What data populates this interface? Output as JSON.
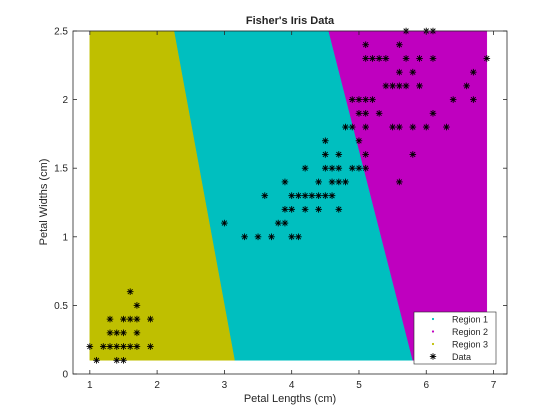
{
  "chart_data": {
    "type": "scatter",
    "title": "Fisher's Iris Data",
    "xlabel": "Petal Lengths (cm)",
    "ylabel": "Petal Widths (cm)",
    "xlim": [
      0.75,
      7.2
    ],
    "ylim": [
      0,
      2.5
    ],
    "xticks": [
      1,
      2,
      3,
      4,
      5,
      6,
      7
    ],
    "yticks": [
      0,
      0.5,
      1,
      1.5,
      2,
      2.5
    ],
    "xtick_labels": [
      "1",
      "2",
      "3",
      "4",
      "5",
      "6",
      "7"
    ],
    "ytick_labels": [
      "0",
      "0.5",
      "1",
      "1.5",
      "2",
      "2.5"
    ],
    "grid": false,
    "legend_position": "bottom-right",
    "regions": [
      {
        "name": "Region 1",
        "color": "#00bfbf",
        "polygon": [
          [
            2.25,
            2.5
          ],
          [
            4.55,
            2.5
          ],
          [
            5.8,
            0.1
          ],
          [
            3.15,
            0.1
          ]
        ]
      },
      {
        "name": "Region 2",
        "color": "#bf00bf",
        "polygon": [
          [
            4.55,
            2.5
          ],
          [
            6.9,
            2.5
          ],
          [
            6.9,
            0.1
          ],
          [
            5.8,
            0.1
          ]
        ]
      },
      {
        "name": "Region 3",
        "color": "#bfbf00",
        "polygon": [
          [
            1.0,
            2.5
          ],
          [
            2.25,
            2.5
          ],
          [
            3.15,
            0.1
          ],
          [
            1.0,
            0.1
          ]
        ]
      }
    ],
    "series": [
      {
        "name": "Data",
        "marker": "*",
        "color": "#000000",
        "points": [
          [
            1.0,
            0.2
          ],
          [
            1.1,
            0.1
          ],
          [
            1.2,
            0.2
          ],
          [
            1.3,
            0.2
          ],
          [
            1.3,
            0.3
          ],
          [
            1.3,
            0.4
          ],
          [
            1.4,
            0.1
          ],
          [
            1.4,
            0.2
          ],
          [
            1.4,
            0.3
          ],
          [
            1.5,
            0.1
          ],
          [
            1.5,
            0.2
          ],
          [
            1.5,
            0.3
          ],
          [
            1.5,
            0.4
          ],
          [
            1.6,
            0.2
          ],
          [
            1.6,
            0.4
          ],
          [
            1.6,
            0.6
          ],
          [
            1.7,
            0.2
          ],
          [
            1.7,
            0.3
          ],
          [
            1.7,
            0.4
          ],
          [
            1.7,
            0.5
          ],
          [
            1.9,
            0.2
          ],
          [
            1.9,
            0.4
          ],
          [
            3.0,
            1.1
          ],
          [
            3.3,
            1.0
          ],
          [
            3.5,
            1.0
          ],
          [
            3.6,
            1.3
          ],
          [
            3.7,
            1.0
          ],
          [
            3.8,
            1.1
          ],
          [
            3.9,
            1.1
          ],
          [
            3.9,
            1.2
          ],
          [
            3.9,
            1.4
          ],
          [
            4.0,
            1.0
          ],
          [
            4.0,
            1.2
          ],
          [
            4.0,
            1.3
          ],
          [
            4.1,
            1.0
          ],
          [
            4.1,
            1.3
          ],
          [
            4.2,
            1.2
          ],
          [
            4.2,
            1.3
          ],
          [
            4.2,
            1.5
          ],
          [
            4.3,
            1.3
          ],
          [
            4.4,
            1.2
          ],
          [
            4.4,
            1.3
          ],
          [
            4.4,
            1.4
          ],
          [
            4.5,
            1.3
          ],
          [
            4.5,
            1.5
          ],
          [
            4.5,
            1.6
          ],
          [
            4.5,
            1.7
          ],
          [
            4.6,
            1.3
          ],
          [
            4.6,
            1.4
          ],
          [
            4.6,
            1.5
          ],
          [
            4.7,
            1.2
          ],
          [
            4.7,
            1.4
          ],
          [
            4.7,
            1.5
          ],
          [
            4.7,
            1.6
          ],
          [
            4.8,
            1.4
          ],
          [
            4.8,
            1.8
          ],
          [
            4.9,
            1.5
          ],
          [
            4.9,
            1.8
          ],
          [
            4.9,
            2.0
          ],
          [
            5.0,
            1.5
          ],
          [
            5.0,
            1.7
          ],
          [
            5.0,
            1.9
          ],
          [
            5.0,
            2.0
          ],
          [
            5.1,
            1.5
          ],
          [
            5.1,
            1.6
          ],
          [
            5.1,
            1.8
          ],
          [
            5.1,
            1.9
          ],
          [
            5.1,
            2.0
          ],
          [
            5.1,
            2.3
          ],
          [
            5.1,
            2.4
          ],
          [
            5.2,
            2.0
          ],
          [
            5.2,
            2.3
          ],
          [
            5.3,
            1.9
          ],
          [
            5.3,
            2.3
          ],
          [
            5.4,
            2.1
          ],
          [
            5.4,
            2.3
          ],
          [
            5.5,
            1.8
          ],
          [
            5.5,
            2.1
          ],
          [
            5.6,
            1.4
          ],
          [
            5.6,
            1.8
          ],
          [
            5.6,
            2.1
          ],
          [
            5.6,
            2.2
          ],
          [
            5.6,
            2.4
          ],
          [
            5.7,
            2.1
          ],
          [
            5.7,
            2.3
          ],
          [
            5.7,
            2.5
          ],
          [
            5.8,
            1.6
          ],
          [
            5.8,
            1.8
          ],
          [
            5.8,
            2.2
          ],
          [
            5.9,
            2.1
          ],
          [
            5.9,
            2.3
          ],
          [
            6.0,
            1.8
          ],
          [
            6.0,
            2.5
          ],
          [
            6.1,
            1.9
          ],
          [
            6.1,
            2.3
          ],
          [
            6.1,
            2.5
          ],
          [
            6.3,
            1.8
          ],
          [
            6.4,
            2.0
          ],
          [
            6.6,
            2.1
          ],
          [
            6.7,
            2.0
          ],
          [
            6.7,
            2.2
          ],
          [
            6.9,
            2.3
          ]
        ]
      }
    ]
  }
}
